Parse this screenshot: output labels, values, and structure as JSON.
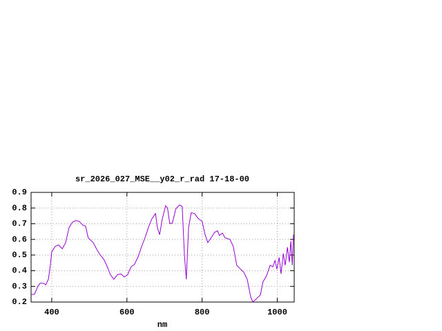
{
  "chart_data": {
    "type": "line",
    "title": "sr_2026_027_MSE__y02_r_rad 17-18-00",
    "x_label": "nm",
    "xlim": [
      345,
      1045
    ],
    "xticks": [
      400,
      600,
      800,
      1000
    ],
    "ylim": [
      0.2,
      0.9
    ],
    "yticks": [
      0.2,
      0.3,
      0.4,
      0.5,
      0.6,
      0.7,
      0.8,
      0.9
    ],
    "grid": true,
    "x": [
      345,
      354,
      363,
      369,
      378,
      384,
      391,
      396,
      400,
      409,
      418,
      428,
      437,
      446,
      455,
      464,
      473,
      483,
      490,
      497,
      510,
      520,
      529,
      538,
      547,
      556,
      565,
      575,
      584,
      593,
      602,
      611,
      620,
      630,
      639,
      648,
      657,
      666,
      676,
      681,
      687,
      694,
      703,
      708,
      714,
      721,
      730,
      740,
      747,
      753,
      758,
      764,
      771,
      780,
      789,
      800,
      808,
      815,
      824,
      833,
      841,
      846,
      854,
      861,
      874,
      883,
      892,
      902,
      911,
      920,
      929,
      935,
      946,
      955,
      962,
      971,
      981,
      988,
      994,
      999,
      1005,
      1010,
      1016,
      1021,
      1027,
      1032,
      1036,
      1040,
      1043
    ],
    "series": [
      {
        "color": "#9400d3",
        "values": [
          0.248,
          0.25,
          0.3,
          0.32,
          0.32,
          0.31,
          0.345,
          0.43,
          0.52,
          0.555,
          0.565,
          0.54,
          0.58,
          0.675,
          0.71,
          0.72,
          0.715,
          0.69,
          0.685,
          0.61,
          0.58,
          0.535,
          0.5,
          0.475,
          0.43,
          0.375,
          0.345,
          0.375,
          0.38,
          0.36,
          0.375,
          0.425,
          0.44,
          0.49,
          0.555,
          0.61,
          0.675,
          0.73,
          0.765,
          0.675,
          0.63,
          0.73,
          0.815,
          0.8,
          0.7,
          0.705,
          0.795,
          0.82,
          0.81,
          0.5,
          0.345,
          0.675,
          0.77,
          0.765,
          0.735,
          0.715,
          0.63,
          0.58,
          0.61,
          0.645,
          0.655,
          0.625,
          0.64,
          0.61,
          0.6,
          0.555,
          0.435,
          0.41,
          0.39,
          0.345,
          0.235,
          0.2,
          0.225,
          0.245,
          0.33,
          0.365,
          0.435,
          0.425,
          0.465,
          0.41,
          0.485,
          0.38,
          0.51,
          0.435,
          0.55,
          0.455,
          0.59,
          0.435,
          0.63
        ]
      }
    ]
  }
}
